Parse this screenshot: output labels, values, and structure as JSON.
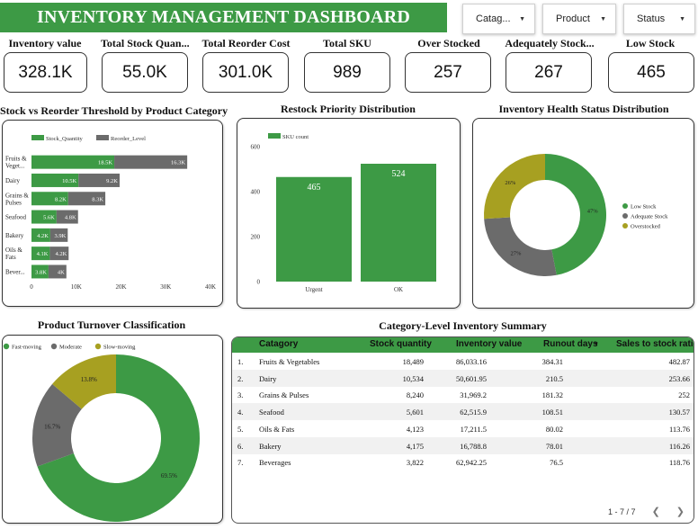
{
  "header": {
    "title": "INVENTORY MANAGEMENT DASHBOARD"
  },
  "filters": [
    {
      "label": "Catag..."
    },
    {
      "label": "Product"
    },
    {
      "label": "Status"
    }
  ],
  "kpis": [
    {
      "label": "Inventory value",
      "value": "328.1K"
    },
    {
      "label": "Total Stock Quan...",
      "value": "55.0K"
    },
    {
      "label": "Total Reorder Cost",
      "value": "301.0K"
    },
    {
      "label": "Total SKU",
      "value": "989"
    },
    {
      "label": "Over Stocked",
      "value": "257"
    },
    {
      "label": "Adequately Stock...",
      "value": "267"
    },
    {
      "label": "Low Stock",
      "value": "465"
    }
  ],
  "colors": {
    "green": "#3d9a45",
    "gray": "#6b6b6b",
    "olive": "#a7a021"
  },
  "chart_data": [
    {
      "type": "bar",
      "orientation": "horizontal",
      "stacked": true,
      "title": "Stock vs Reorder Threshold by Product Category",
      "legend": [
        "Stock_Quantity",
        "Reorder_Level"
      ],
      "categories": [
        "Fruits & Veget...",
        "Dairy",
        "Grains & Pulses",
        "Seafood",
        "Bakery",
        "Oils & Fats",
        "Bever..."
      ],
      "series": [
        {
          "name": "Stock_Quantity",
          "values": [
            18.5,
            10.5,
            8.2,
            5.6,
            4.2,
            4.1,
            3.8
          ],
          "labels": [
            "18.5K",
            "10.5K",
            "8.2K",
            "5.6K",
            "4.2K",
            "4.1K",
            "3.8K"
          ]
        },
        {
          "name": "Reorder_Level",
          "values": [
            16.3,
            9.2,
            8.3,
            4.8,
            3.9,
            4.2,
            4.0
          ],
          "labels": [
            "16.3K",
            "9.2K",
            "8.3K",
            "4.8K",
            "3.9K",
            "4.2K",
            "4K"
          ]
        }
      ],
      "xticks": [
        "0",
        "10K",
        "20K",
        "30K",
        "40K"
      ],
      "xlim": [
        0,
        40
      ]
    },
    {
      "type": "bar",
      "title": "Restock Priority Distribution",
      "legend": [
        "SKU count"
      ],
      "categories": [
        "Urgent",
        "OK"
      ],
      "values": [
        465,
        524
      ],
      "yticks": [
        "0",
        "200",
        "400",
        "600"
      ],
      "ylim": [
        0,
        600
      ]
    },
    {
      "type": "pie",
      "donut": true,
      "title": "Inventory Health Status Distribution",
      "labels": [
        "Low Stock",
        "Adequate Stock",
        "Overstocked"
      ],
      "values": [
        47,
        27,
        26
      ],
      "value_labels": [
        "47%",
        "27%",
        "26%"
      ]
    },
    {
      "type": "pie",
      "donut": true,
      "title": "Product Turnover Classification",
      "labels": [
        "Fast-moving",
        "Moderate",
        "Slow-moving"
      ],
      "values": [
        69.5,
        16.7,
        13.8
      ],
      "value_labels": [
        "69.5%",
        "16.7%",
        "13.8%"
      ]
    },
    {
      "type": "table",
      "title": "Category-Level Inventory Summary",
      "columns": [
        "Catagory",
        "Stock quantity",
        "Inventory value",
        "Runout days",
        "Sales to stock ratio"
      ],
      "sort_indicator": "▼",
      "rows": [
        [
          "1.",
          "Fruits & Vegetables",
          "18,489",
          "86,033.16",
          "384.31",
          "482.87"
        ],
        [
          "2.",
          "Dairy",
          "10,534",
          "50,601.95",
          "210.5",
          "253.66"
        ],
        [
          "3.",
          "Grains & Pulses",
          "8,240",
          "31,969.2",
          "181.32",
          "252"
        ],
        [
          "4.",
          "Seafood",
          "5,601",
          "62,515.9",
          "108.51",
          "130.57"
        ],
        [
          "5.",
          "Oils & Fats",
          "4,123",
          "17,211.5",
          "80.02",
          "113.76"
        ],
        [
          "6.",
          "Bakery",
          "4,175",
          "16,788.8",
          "78.01",
          "116.26"
        ],
        [
          "7.",
          "Beverages",
          "3,822",
          "62,942.25",
          "76.5",
          "118.76"
        ]
      ],
      "pagination": "1 - 7 / 7"
    }
  ]
}
